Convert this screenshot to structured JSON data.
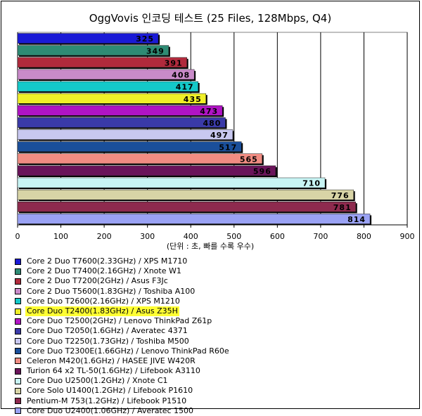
{
  "chart_data": {
    "type": "bar",
    "orientation": "horizontal",
    "title": "OggVovis 인코딩 테스트 (25 Files, 128Mbps, Q4)",
    "xlabel": "(단위 : 초, 빠를 수록 우수)",
    "xlim": [
      0,
      900
    ],
    "x_ticks": [
      "0",
      "100",
      "200",
      "300",
      "400",
      "500",
      "600",
      "700",
      "800",
      "900"
    ],
    "grid": "vertical",
    "legend_position": "bottom",
    "highlighted_index": 5,
    "categories": [
      "Core 2 Duo T7600(2.33GHz) / XPS M1710",
      "Core 2 Duo T7400(2.16GHz) / Xnote W1",
      "Core 2 Duo T7200(2GHz) / Asus F3Jc",
      "Core 2 Duo T5600(1.83GHz) / Toshiba A100",
      "Core Duo T2600(2.16GHz) / XPS M1210",
      "Core Duo T2400(1.83GHz) / Asus Z35H",
      "Core Duo T2500(2GHz) / Lenovo ThinkPad Z61p",
      "Core Duo T2050(1.6GHz) / Averatec 4371",
      "Core Duo T2250(1.73GHz) / Toshiba M500",
      "Core Duo T2300E(1.66GHz) / Lenovo ThinkPad R60e",
      "Celeron M420(1.6GHz) / HASEE JIVE W420R",
      "Turion 64 x2 TL-50(1.6GHz) / Lifebook A3110",
      "Core Duo U2500(1.2GHz) / Xnote C1",
      "Core Solo U1400(1.2GHz) / Lifebook P1610",
      "Pentium-M 753(1.2GHz) / Lifebook P1510",
      "Core Duo U2400(1.06GHz) / Averatec 1500"
    ],
    "values": [
      325,
      349,
      391,
      408,
      417,
      435,
      473,
      480,
      497,
      517,
      565,
      596,
      710,
      776,
      781,
      814
    ],
    "value_labels": [
      "325",
      "349",
      "391",
      "408",
      "417",
      "435",
      "473",
      "480",
      "497",
      "517",
      "565",
      "596",
      "710",
      "776",
      "781",
      "814"
    ],
    "colors": [
      "#1a1ad6",
      "#2e8b74",
      "#b02a3c",
      "#c98bc9",
      "#14c9c9",
      "#f0f028",
      "#b014c4",
      "#3a3aa8",
      "#c8c8f0",
      "#1a4f9a",
      "#f08c82",
      "#6a145a",
      "#c8f4f4",
      "#d8d4a6",
      "#8e2a4e",
      "#9aa2f4"
    ]
  }
}
